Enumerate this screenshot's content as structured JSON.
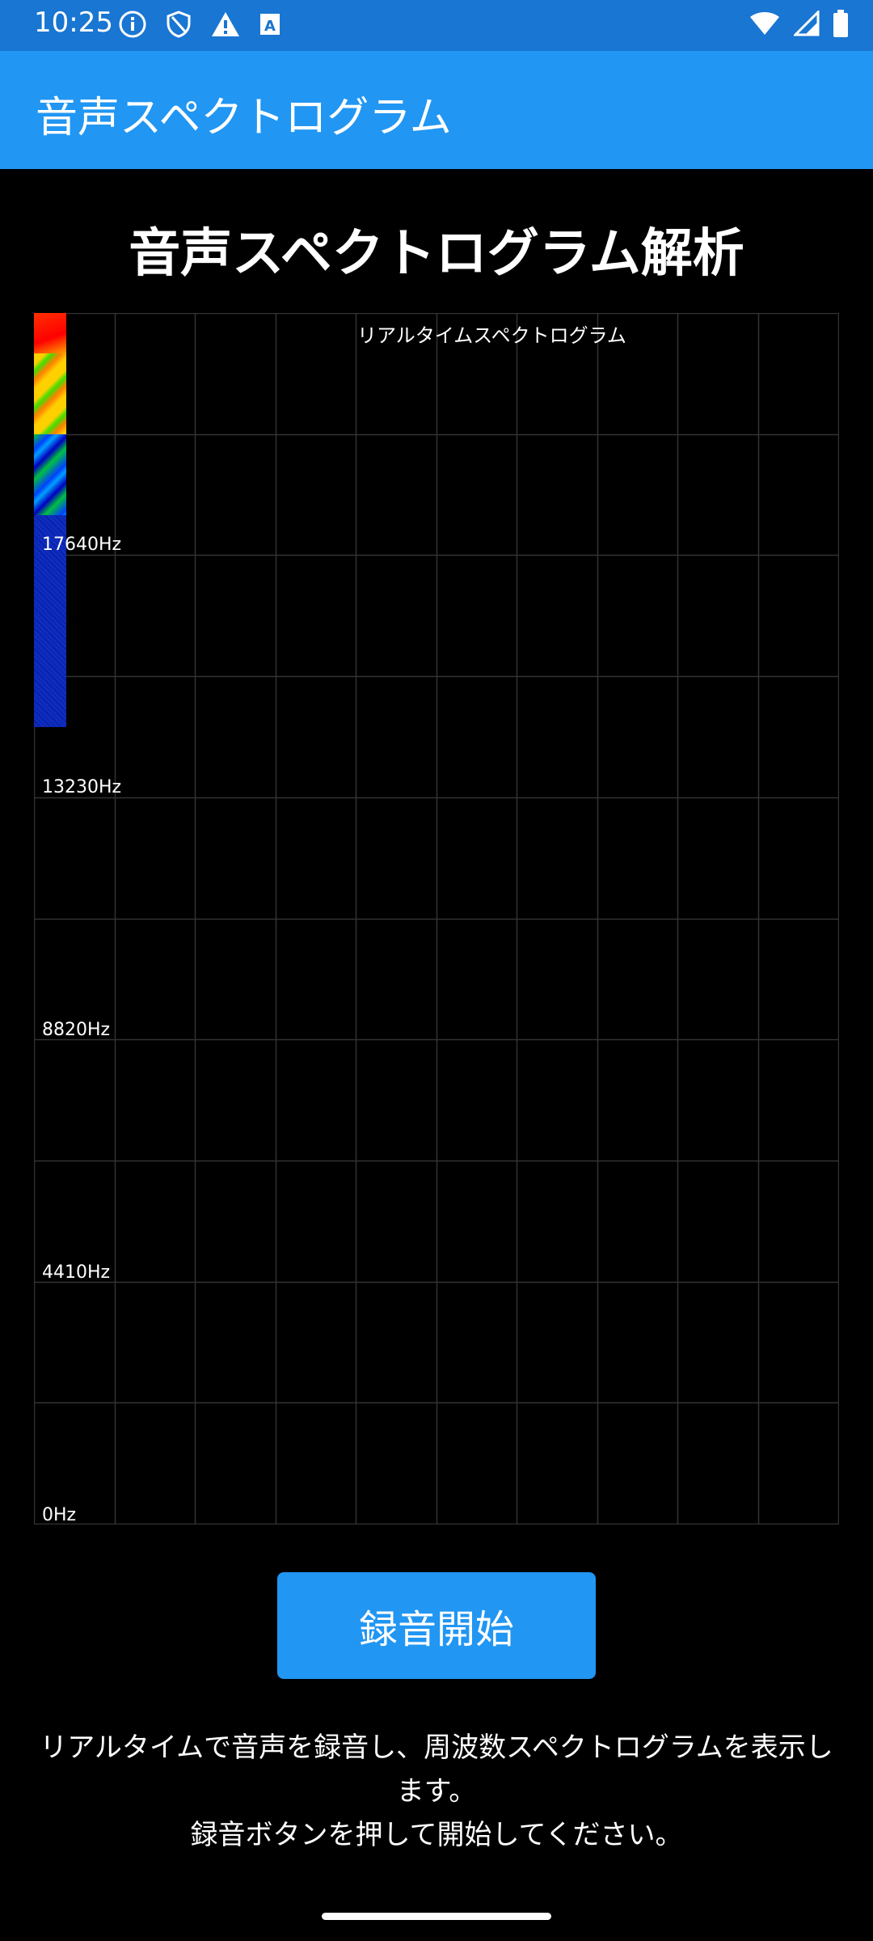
{
  "status_bar": {
    "time": "10:25",
    "icons_left": [
      "info-icon",
      "shield-icon",
      "warning-icon",
      "font-icon"
    ],
    "icons_right": [
      "wifi-icon",
      "cellular-signal-icon",
      "battery-icon"
    ]
  },
  "app_bar": {
    "title": "音声スペクトログラム"
  },
  "page": {
    "title": "音声スペクトログラム解析"
  },
  "spectrogram": {
    "title": "リアルタイムスペクトログラム",
    "frequency_labels": [
      "17640Hz",
      "13230Hz",
      "8820Hz",
      "4410Hz",
      "0Hz"
    ],
    "grid_color": "#333333"
  },
  "record": {
    "label": "録音開始"
  },
  "description": {
    "line1": "リアルタイムで音声を録音し、周波数スペクトログラムを表示します。",
    "line2": "録音ボタンを押して開始してください。"
  },
  "colors": {
    "status_bar": "#1976D2",
    "app_bar": "#2196F3",
    "button": "#2196F3",
    "background": "#000000"
  }
}
